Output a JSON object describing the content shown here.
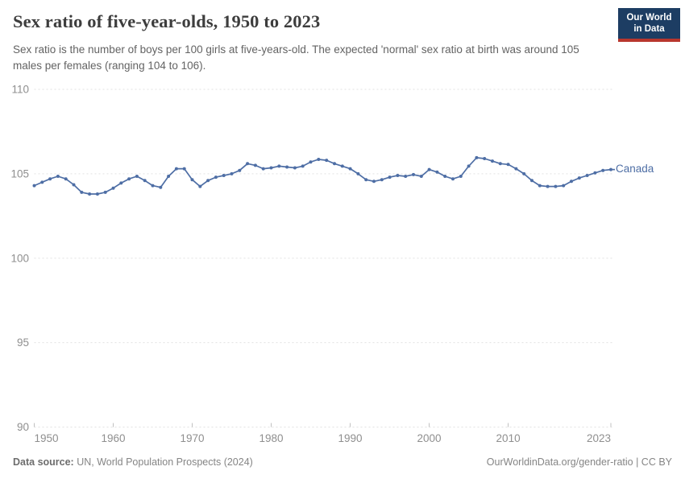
{
  "header": {
    "title": "Sex ratio of five-year-olds, 1950 to 2023",
    "subtitle": "Sex ratio is the number of boys per 100 girls at five-years-old. The expected 'normal' sex ratio at birth was around 105 males per females (ranging 104 to 106).",
    "logo": {
      "line1": "Our World",
      "line2": "in Data"
    }
  },
  "chart_data": {
    "type": "line",
    "title": "Sex ratio of five-year-olds, 1950 to 2023",
    "xlabel": "",
    "ylabel": "",
    "ylim": [
      90,
      110
    ],
    "yticks": [
      90,
      95,
      100,
      105,
      110
    ],
    "xticks": [
      1950,
      1960,
      1970,
      1980,
      1990,
      2000,
      2010,
      2023
    ],
    "grid": true,
    "legend_position": "end-of-line",
    "series": [
      {
        "name": "Canada",
        "color": "#4e6ea5",
        "x": [
          1950,
          1951,
          1952,
          1953,
          1954,
          1955,
          1956,
          1957,
          1958,
          1959,
          1960,
          1961,
          1962,
          1963,
          1964,
          1965,
          1966,
          1967,
          1968,
          1969,
          1970,
          1971,
          1972,
          1973,
          1974,
          1975,
          1976,
          1977,
          1978,
          1979,
          1980,
          1981,
          1982,
          1983,
          1984,
          1985,
          1986,
          1987,
          1988,
          1989,
          1990,
          1991,
          1992,
          1993,
          1994,
          1995,
          1996,
          1997,
          1998,
          1999,
          2000,
          2001,
          2002,
          2003,
          2004,
          2005,
          2006,
          2007,
          2008,
          2009,
          2010,
          2011,
          2012,
          2013,
          2014,
          2015,
          2016,
          2017,
          2018,
          2019,
          2020,
          2021,
          2022,
          2023
        ],
        "values": [
          104.3,
          104.5,
          104.7,
          104.85,
          104.7,
          104.35,
          103.9,
          103.8,
          103.8,
          103.9,
          104.15,
          104.45,
          104.7,
          104.85,
          104.6,
          104.3,
          104.2,
          104.85,
          105.3,
          105.3,
          104.65,
          104.25,
          104.6,
          104.8,
          104.9,
          105.0,
          105.2,
          105.6,
          105.5,
          105.3,
          105.35,
          105.45,
          105.4,
          105.35,
          105.45,
          105.7,
          105.85,
          105.8,
          105.6,
          105.45,
          105.3,
          105.0,
          104.65,
          104.55,
          104.65,
          104.8,
          104.9,
          104.85,
          104.95,
          104.85,
          105.25,
          105.1,
          104.85,
          104.7,
          104.85,
          105.45,
          105.95,
          105.9,
          105.75,
          105.6,
          105.55,
          105.3,
          105.0,
          104.6,
          104.3,
          104.25,
          104.25,
          104.3,
          104.55,
          104.75,
          104.9,
          105.05,
          105.2,
          105.25
        ]
      }
    ]
  },
  "colors": {
    "line": "#4e6ea5",
    "gridline": "#e2e2e2",
    "tick": "#c0c0c0",
    "tick_label": "#8f8f8f",
    "logo_navy": "#1d3d63",
    "logo_red": "#b8362e"
  },
  "footer": {
    "datasource_label": "Data source:",
    "datasource_value": " UN, World Population Prospects (2024)",
    "credit": "OurWorldinData.org/gender-ratio | CC BY"
  }
}
